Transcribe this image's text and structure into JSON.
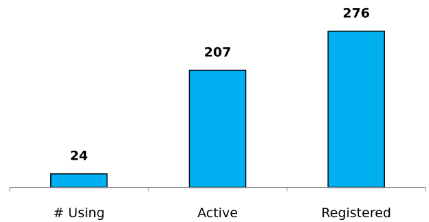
{
  "chart_data": {
    "type": "bar",
    "categories": [
      "# Using",
      "Active",
      "Registered"
    ],
    "values": [
      24,
      207,
      276
    ],
    "data_labels": [
      "24",
      "207",
      "276"
    ],
    "title": "",
    "xlabel": "",
    "ylabel": "",
    "ylim": [
      0,
      276
    ],
    "grid": false,
    "legend": "none",
    "colors": {
      "bar": "#00b0f0",
      "bar_outline": "#000000",
      "axis": "#7f7f7f"
    }
  }
}
